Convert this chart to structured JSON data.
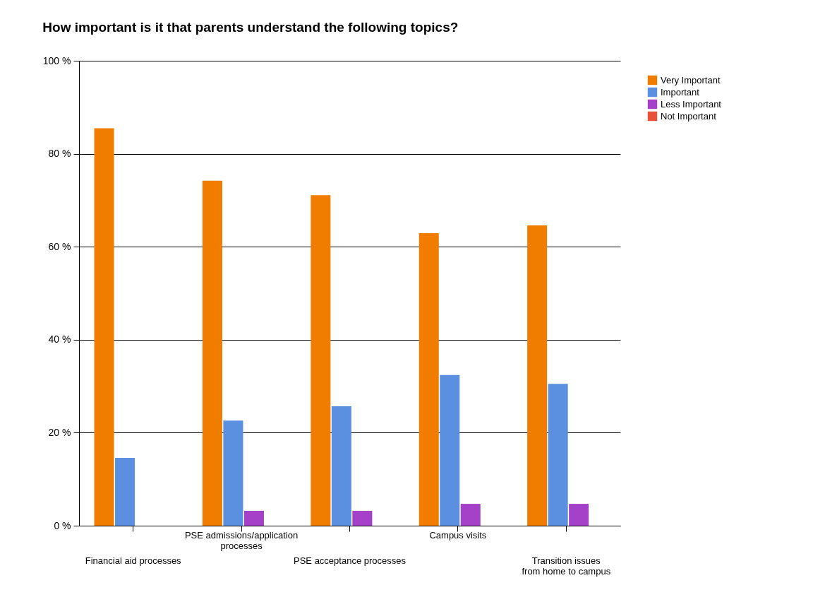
{
  "chart_data": {
    "type": "bar",
    "title": "How important is it that parents understand the following topics?",
    "categories": [
      "Financial aid processes",
      "PSE admissions/application\nprocesses",
      "PSE acceptance processes",
      "Campus visits",
      "Transition issues\nfrom home to campus"
    ],
    "series": [
      {
        "name": "Very Important",
        "color": "#f07d00",
        "values": [
          85.5,
          74.2,
          71.1,
          62.9,
          64.6
        ]
      },
      {
        "name": "Important",
        "color": "#5b8fe0",
        "values": [
          14.6,
          22.6,
          25.7,
          32.4,
          30.5
        ]
      },
      {
        "name": "Less Important",
        "color": "#a541c8",
        "values": [
          0,
          3.2,
          3.2,
          4.7,
          4.7
        ]
      },
      {
        "name": "Not Important",
        "color": "#e8503a",
        "values": [
          0,
          0,
          0,
          0,
          0
        ]
      }
    ],
    "ylim": [
      0,
      100
    ],
    "yticks": [
      {
        "value": 0,
        "label": "0 %"
      },
      {
        "value": 20,
        "label": "20 %"
      },
      {
        "value": 40,
        "label": "40 %"
      },
      {
        "value": 60,
        "label": "60 %"
      },
      {
        "value": 80,
        "label": "80 %"
      },
      {
        "value": 100,
        "label": "100 %"
      }
    ],
    "grid": "y",
    "legend": "right"
  }
}
